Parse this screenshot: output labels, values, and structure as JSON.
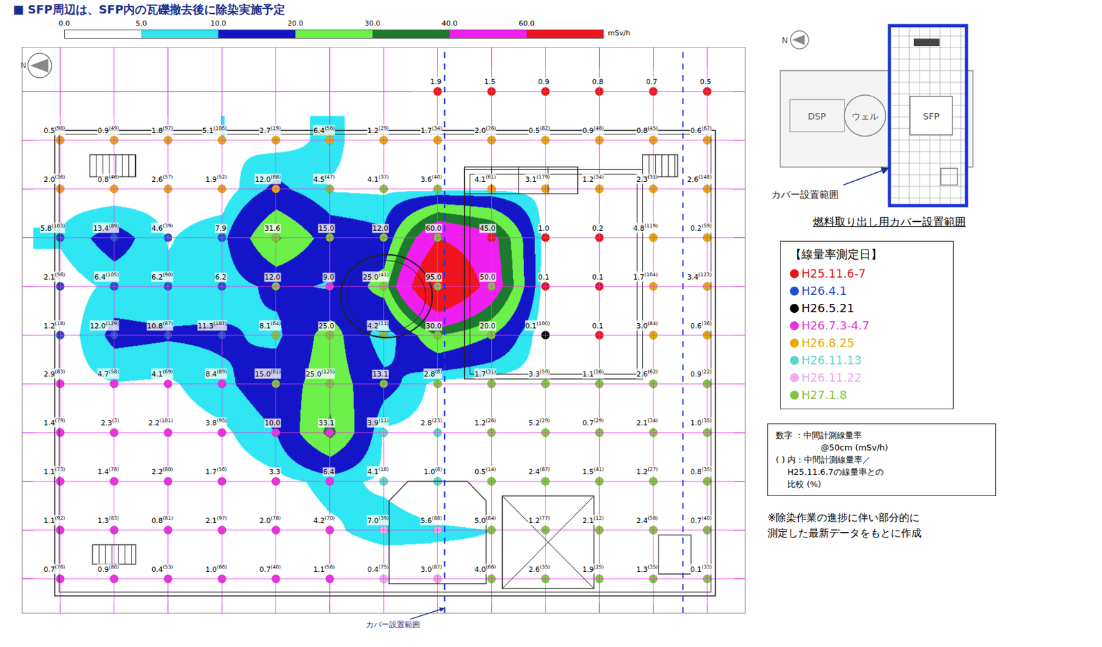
{
  "title": "■ SFP周辺は、SFP内の瓦礫撤去後に除染実施予定",
  "chart_data": {
    "type": "contour",
    "colorbar": {
      "ticks": [
        {
          "value": 0,
          "label": "0.0"
        },
        {
          "value": 5,
          "label": "5.0"
        },
        {
          "value": 10,
          "label": "10.0"
        },
        {
          "value": 20,
          "label": "20.0"
        },
        {
          "value": 30,
          "label": "30.0"
        },
        {
          "value": 40,
          "label": "40.0"
        },
        {
          "value": 60,
          "label": "60.0"
        }
      ],
      "colors": [
        "#ffffff",
        "#2fe6f2",
        "#1414c8",
        "#6cf04a",
        "#1d7a2c",
        "#f01ef0",
        "#f0141e"
      ],
      "unit": "mSv/h"
    },
    "xlim": [
      -0.7,
      12.7
    ],
    "ylim": [
      10.7,
      -0.9
    ],
    "xticks": [
      0,
      1,
      2,
      3,
      4,
      5,
      6,
      7,
      8,
      9,
      10,
      11,
      12
    ],
    "yticks": [
      0,
      1,
      2,
      3,
      4,
      5,
      6,
      7,
      8,
      9,
      10
    ],
    "grid": true,
    "tick_labels": false,
    "north": "N",
    "cover_label": "カバー設置範囲",
    "dates": [
      {
        "name": "H25.11.6-7",
        "color": "#e8141c"
      },
      {
        "name": "H26.4.1",
        "color": "#1f4fd0"
      },
      {
        "name": "H26.5.21",
        "color": "#000000"
      },
      {
        "name": "H26.7.3-4.7",
        "color": "#e633d9"
      },
      {
        "name": "H26.8.25",
        "color": "#e8aa00"
      },
      {
        "name": "H26.11.13",
        "color": "#5fd6cc"
      },
      {
        "name": "H26.11.22",
        "color": "#eeaaee"
      },
      {
        "name": "H27.1.8",
        "color": "#86c446"
      }
    ],
    "rows": [
      {
        "values": [
          null,
          null,
          null,
          null,
          null,
          null,
          null,
          1.9,
          1.5,
          0.9,
          0.8,
          0.7,
          0.5
        ],
        "value_labels": [
          null,
          null,
          null,
          null,
          null,
          null,
          null,
          "1.9",
          "1.5",
          "0.9",
          "0.8",
          "0.7",
          "0.5"
        ],
        "pct_labels": [
          null,
          null,
          null,
          null,
          null,
          null,
          null,
          null,
          null,
          null,
          null,
          null,
          null
        ],
        "date": [
          null,
          null,
          null,
          null,
          null,
          null,
          null,
          0,
          0,
          0,
          0,
          0,
          0
        ]
      },
      {
        "values": [
          0.5,
          0.9,
          1.8,
          5.1,
          2.7,
          6.4,
          1.2,
          1.7,
          2.0,
          0.5,
          0.9,
          0.8,
          0.6
        ],
        "value_labels": [
          "0.5",
          "0.9",
          "1.8",
          "5.1",
          "2.7",
          "6.4",
          "1.2",
          "1.7",
          "2.0",
          "0.5",
          "0.9",
          "0.8",
          "0.6"
        ],
        "pct_labels": [
          "(98)",
          "(49)",
          "(97)",
          "(106)",
          "(19)",
          "(56)",
          "(29)",
          "(34)",
          "(76)",
          "(82)",
          "(48)",
          "(45)",
          "(67)"
        ],
        "date": [
          4,
          4,
          4,
          4,
          4,
          4,
          4,
          4,
          4,
          4,
          4,
          4,
          4
        ]
      },
      {
        "values": [
          2.0,
          0.8,
          2.6,
          1.9,
          12.0,
          4.5,
          4.1,
          3.6,
          4.1,
          3.1,
          1.2,
          2.3,
          2.6
        ],
        "value_labels": [
          "2.0",
          "0.8",
          "2.6",
          "1.9",
          "12.0",
          "4.5",
          "4.1",
          "3.6",
          "4.1",
          "3.1",
          "1.2",
          "2.3",
          "2.6"
        ],
        "pct_labels": [
          "(36)",
          "(46)",
          "(57)",
          "(52)",
          "(68)",
          "(47)",
          "(37)",
          "(40)",
          "(61)",
          "(179)",
          "(34)",
          "(31)",
          "(148)"
        ],
        "date": [
          4,
          4,
          4,
          4,
          4,
          7,
          7,
          7,
          4,
          4,
          4,
          4,
          4
        ]
      },
      {
        "values": [
          5.8,
          13.4,
          4.6,
          7.9,
          31.6,
          15.0,
          12.0,
          60.0,
          45.0,
          1.0,
          0.2,
          4.8,
          0.2
        ],
        "value_labels": [
          "5.8",
          "13.4",
          "4.6",
          "7.9",
          "31.6",
          "15.0",
          "12.0",
          "60.0",
          "45.0",
          "1.0",
          "0.2",
          "4.8",
          "0.2"
        ],
        "pct_labels": [
          "(103)",
          "(89)",
          "(39)",
          null,
          null,
          null,
          null,
          null,
          null,
          null,
          null,
          "(119)",
          "(59)"
        ],
        "date": [
          1,
          1,
          1,
          1,
          7,
          7,
          7,
          7,
          0,
          0,
          0,
          4,
          4
        ]
      },
      {
        "values": [
          2.1,
          6.4,
          6.2,
          6.2,
          12.0,
          9.0,
          25.0,
          95.0,
          50.0,
          0.1,
          0.1,
          1.7,
          3.4
        ],
        "value_labels": [
          "2.1",
          "6.4",
          "6.2",
          "6.2",
          "12.0",
          "9.0",
          "25.0",
          "95.0",
          "50.0",
          "0.1",
          "0.1",
          "1.7",
          "3.4"
        ],
        "pct_labels": [
          "(56)",
          "(105)",
          "(90)",
          null,
          null,
          null,
          "(41)",
          null,
          null,
          null,
          null,
          "(104)",
          "(123)"
        ],
        "date": [
          1,
          1,
          1,
          1,
          7,
          3,
          7,
          7,
          7,
          0,
          0,
          4,
          4
        ]
      },
      {
        "values": [
          1.2,
          12.0,
          10.8,
          11.3,
          8.1,
          25.0,
          4.2,
          30.0,
          20.0,
          0.1,
          0.1,
          3.0,
          0.6
        ],
        "value_labels": [
          "1.2",
          "12.0",
          "10.8",
          "11.3",
          "8.1",
          "25.0",
          "4.2",
          "30.0",
          "20.0",
          "0.1",
          "0.1",
          "3.0",
          "0.6"
        ],
        "pct_labels": [
          "(18)",
          "(129)",
          "(87)",
          "(107)",
          "(64)",
          null,
          "(11)",
          null,
          null,
          "(100)",
          null,
          "(84)",
          "(36)"
        ],
        "date": [
          1,
          1,
          1,
          1,
          7,
          7,
          7,
          7,
          7,
          2,
          0,
          4,
          4
        ]
      },
      {
        "values": [
          2.9,
          4.7,
          4.1,
          8.4,
          15.0,
          25.0,
          13.1,
          2.8,
          1.7,
          3.3,
          1.1,
          2.6,
          0.9
        ],
        "value_labels": [
          "2.9",
          "4.7",
          "4.1",
          "8.4",
          "15.0",
          "25.0",
          "13.1",
          "2.8",
          "1.7",
          "3.3",
          "1.1",
          "2.6",
          "0.9"
        ],
        "pct_labels": [
          "(83)",
          "(58)",
          "(69)",
          "(89)",
          "(61)",
          "(125)",
          null,
          "(8)",
          "(31)",
          "(59)",
          "(56)",
          "(62)",
          "(22)"
        ],
        "date": [
          3,
          3,
          3,
          3,
          7,
          7,
          7,
          7,
          7,
          7,
          7,
          7,
          7
        ]
      },
      {
        "values": [
          1.4,
          2.3,
          2.2,
          3.8,
          10.0,
          33.1,
          3.9,
          2.8,
          1.2,
          5.2,
          0.7,
          2.1,
          1.0
        ],
        "value_labels": [
          "1.4",
          "2.3",
          "2.2",
          "3.8",
          "10.0",
          "33.1",
          "3.9",
          "2.8",
          "1.2",
          "5.2",
          "0.7",
          "2.1",
          "1.0"
        ],
        "pct_labels": [
          "(79)",
          "(3)",
          "(101)",
          "(95)",
          null,
          null,
          "(11)",
          "(23)",
          "(26)",
          "(29)",
          "(29)",
          "(34)",
          "(35)"
        ],
        "date": [
          3,
          3,
          3,
          3,
          3,
          3,
          5,
          5,
          7,
          7,
          7,
          7,
          7
        ]
      },
      {
        "values": [
          1.1,
          1.4,
          2.2,
          1.7,
          3.3,
          6.4,
          4.1,
          1.0,
          0.5,
          2.4,
          1.5,
          1.2,
          0.8
        ],
        "value_labels": [
          "1.1",
          "1.4",
          "2.2",
          "1.7",
          "3.3",
          "6.4",
          "4.1",
          "1.0",
          "0.5",
          "2.4",
          "1.5",
          "1.2",
          "0.8"
        ],
        "pct_labels": [
          "(73)",
          "(78)",
          "(80)",
          "(56)",
          null,
          null,
          "(18)",
          "(8)",
          "(14)",
          "(87)",
          "(41)",
          "(27)",
          "(35)"
        ],
        "date": [
          3,
          3,
          3,
          3,
          3,
          3,
          5,
          5,
          7,
          7,
          7,
          7,
          7
        ]
      },
      {
        "values": [
          1.1,
          1.3,
          0.8,
          2.1,
          2.0,
          4.2,
          7.0,
          5.6,
          5.0,
          1.2,
          2.1,
          2.4,
          0.7
        ],
        "value_labels": [
          "1.1",
          "1.3",
          "0.8",
          "2.1",
          "2.0",
          "4.2",
          "7.0",
          "5.6",
          "5.0",
          "1.2",
          "2.1",
          "2.4",
          "0.7"
        ],
        "pct_labels": [
          "(92)",
          "(83)",
          "(81)",
          "(97)",
          "(78)",
          "(70)",
          "(39)",
          "(88)",
          "(64)",
          "(77)",
          "(12)",
          "(58)",
          "(40)"
        ],
        "date": [
          3,
          3,
          3,
          3,
          3,
          3,
          6,
          6,
          7,
          7,
          7,
          7,
          7
        ]
      },
      {
        "values": [
          0.7,
          0.9,
          0.4,
          1.0,
          0.7,
          1.1,
          0.4,
          3.0,
          4.0,
          2.6,
          1.9,
          1.3,
          0.1
        ],
        "value_labels": [
          "0.7",
          "0.9",
          "0.4",
          "1.0",
          "0.7",
          "1.1",
          "0.4",
          "3.0",
          "4.0",
          "2.6",
          "1.9",
          "1.3",
          "0.1"
        ],
        "pct_labels": [
          "(76)",
          "(80)",
          "(53)",
          "(66)",
          "(40)",
          "(56)",
          "(75)",
          "(87)",
          "(66)",
          "(35)",
          "(25)",
          "(35)",
          "(33)"
        ],
        "date": [
          3,
          3,
          3,
          3,
          3,
          3,
          6,
          6,
          7,
          7,
          7,
          7,
          7
        ]
      }
    ]
  },
  "inset": {
    "north": "N",
    "dsp": "DSP",
    "well": "ウェル",
    "sfp": "SFP",
    "cover_label": "カバー設置範囲",
    "caption": "燃料取り出し用カバー設置範囲"
  },
  "legend_box": {
    "title": "【線量率測定日】"
  },
  "notes": [
    "数字 ：中間計測線量率",
    "@50cm (mSv/h)",
    "( ) 内：中間計測線量率／",
    "H25.11.6,7の線量率との",
    "比較 (%)"
  ],
  "footnote": [
    "※除染作業の進捗に伴い部分的に",
    "測定した最新データをもとに作成"
  ]
}
